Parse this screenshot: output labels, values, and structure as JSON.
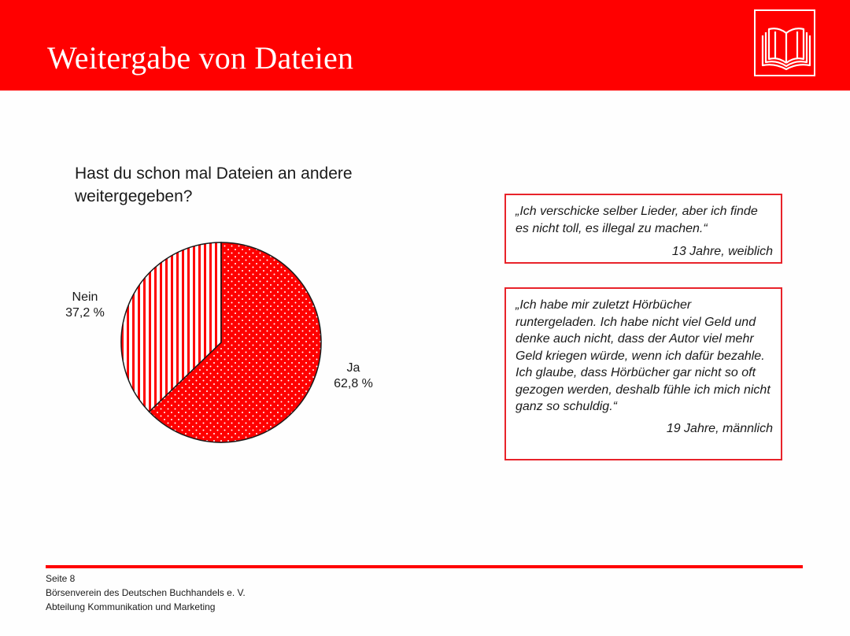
{
  "header": {
    "title": "Weitergabe von Dateien",
    "logo_icon": "open-books-icon",
    "background_color": "#ff0000"
  },
  "chart_data": {
    "type": "pie",
    "title": "Hast du schon mal Dateien an andere weitergegeben?",
    "slices": [
      {
        "label": "Ja",
        "value": 62.8,
        "value_label": "62,8 %",
        "color": "#ff0000",
        "pattern": "dots"
      },
      {
        "label": "Nein",
        "value": 37.2,
        "value_label": "37,2 %",
        "color": "#ff0000",
        "pattern": "vertical-stripes"
      }
    ]
  },
  "quotes": [
    {
      "text": "„Ich verschicke selber Lieder, aber ich finde es nicht toll, es illegal zu machen.“",
      "author": "13 Jahre, weiblich"
    },
    {
      "text": "„Ich habe mir zuletzt Hörbücher runtergeladen. Ich habe nicht viel Geld und denke auch nicht, dass der Autor viel mehr Geld kriegen würde, wenn ich dafür bezahle. Ich glaube, dass Hörbücher gar nicht so oft gezogen werden, deshalb fühle ich mich nicht ganz so schuldig.“",
      "author": "19 Jahre, männlich"
    }
  ],
  "footer": {
    "page": "Seite 8",
    "organization": "Börsenverein des Deutschen Buchhandels e. V.",
    "department": "Abteilung Kommunikation und Marketing"
  }
}
